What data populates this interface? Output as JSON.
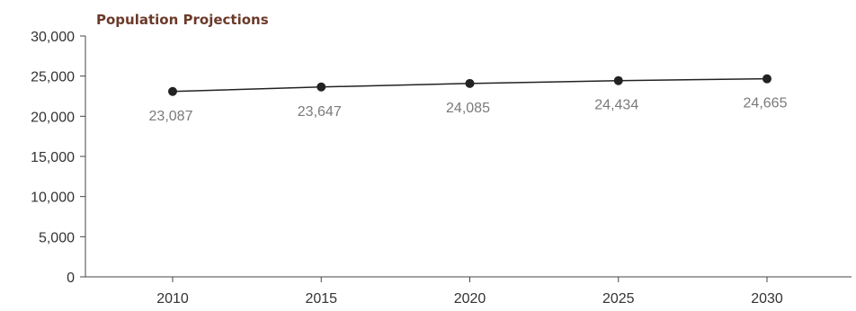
{
  "title": "Population Projections",
  "colors": {
    "title": "#6b3a2a",
    "axis": "#444444",
    "line": "#222222",
    "marker": "#222222",
    "tick_text": "#333333",
    "data_label": "#7a7a7a"
  },
  "chart_data": {
    "type": "line",
    "title": "Population Projections",
    "xlabel": "",
    "ylabel": "",
    "categories": [
      "2010",
      "2015",
      "2020",
      "2025",
      "2030"
    ],
    "series": [
      {
        "values": [
          23087,
          23647,
          24085,
          24434,
          24665
        ],
        "data_labels": [
          "23,087",
          "23,647",
          "24,085",
          "24,434",
          "24,665"
        ]
      }
    ],
    "ylim": [
      0,
      30000
    ],
    "yticks": [
      0,
      5000,
      10000,
      15000,
      20000,
      25000,
      30000
    ],
    "ytick_labels": [
      "0",
      "5,000",
      "10,000",
      "15,000",
      "20,000",
      "25,000",
      "30,000"
    ],
    "grid": false,
    "legend": "none"
  }
}
